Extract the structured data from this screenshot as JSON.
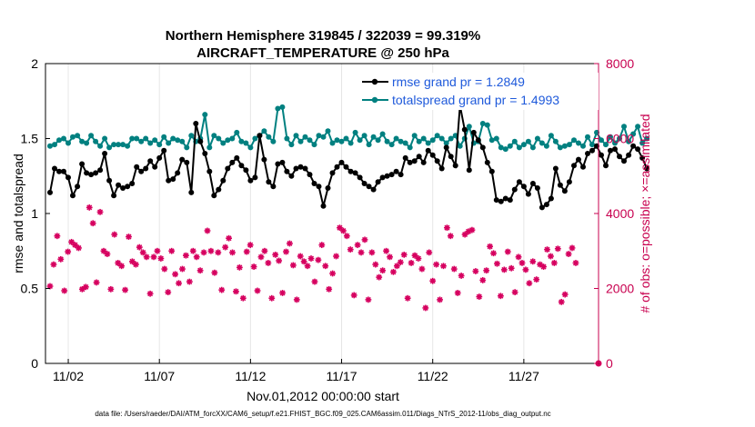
{
  "chart_data": {
    "type": "line",
    "title": "Northern Hemisphere 319845 / 322039 = 99.319%",
    "subtitle": "AIRCRAFT_TEMPERATURE @ 250 hPa",
    "xlabel": "Nov.01,2012 00:00:00 start",
    "ylabel_left": "rmse and totalspread",
    "ylabel_right": "# of obs: o=possible; ×=assimilated",
    "footer": "data file: /Users/raeder/DAI/ATM_forcXX/CAM6_setup/f.e21.FHIST_BGC.f09_025.CAM6assim.011/Diags_NTrS_2012-11/obs_diag_output.nc",
    "x_range": [
      0.75,
      31.1
    ],
    "x_ticks": [
      2,
      7,
      12,
      17,
      22,
      27
    ],
    "x_tick_labels": [
      "11/02",
      "11/07",
      "11/12",
      "11/17",
      "11/22",
      "11/27"
    ],
    "y_left_range": [
      0,
      2
    ],
    "y_left_ticks": [
      0,
      0.5,
      1,
      1.5,
      2
    ],
    "y_left_tick_labels": [
      "0",
      "0.5",
      "1",
      "1.5",
      "2"
    ],
    "y_right_range": [
      0,
      8000
    ],
    "y_right_ticks": [
      0,
      2000,
      4000,
      6000,
      8000
    ],
    "y_right_tick_labels": [
      "0",
      "2000",
      "4000",
      "6000",
      "8000"
    ],
    "legend": [
      "rmse grand pr = 1.2849",
      "totalspread grand pr = 1.4993"
    ],
    "colors": {
      "rmse": "#000000",
      "spread": "#008080",
      "obs": "#d6005f",
      "right_axis": "#c8004f",
      "legend_text": "#1f5adb"
    },
    "x_start": 1.0,
    "x_step": 0.25,
    "series": [
      {
        "name": "rmse",
        "values": [
          1.14,
          1.3,
          1.28,
          1.28,
          1.24,
          1.12,
          1.18,
          1.33,
          1.27,
          1.26,
          1.27,
          1.29,
          1.4,
          1.22,
          1.12,
          1.19,
          1.17,
          1.18,
          1.2,
          1.31,
          1.28,
          1.3,
          1.35,
          1.31,
          1.37,
          1.42,
          1.22,
          1.23,
          1.27,
          1.36,
          1.34,
          1.14,
          1.6,
          1.48,
          1.4,
          1.28,
          1.12,
          1.16,
          1.22,
          1.3,
          1.34,
          1.37,
          1.32,
          1.29,
          1.22,
          1.24,
          1.52,
          1.36,
          1.21,
          1.18,
          1.33,
          1.34,
          1.28,
          1.25,
          1.3,
          1.31,
          1.3,
          1.26,
          1.2,
          1.18,
          1.05,
          1.17,
          1.27,
          1.31,
          1.34,
          1.31,
          1.28,
          1.27,
          1.24,
          1.2,
          1.18,
          1.16,
          1.21,
          1.24,
          1.25,
          1.26,
          1.28,
          1.26,
          1.37,
          1.34,
          1.35,
          1.38,
          1.34,
          1.42,
          1.39,
          1.35,
          1.3,
          1.44,
          1.38,
          1.32,
          1.72,
          1.56,
          1.29,
          1.54,
          1.49,
          1.44,
          1.34,
          1.28,
          1.09,
          1.08,
          1.1,
          1.09,
          1.16,
          1.21,
          1.18,
          1.13,
          1.2,
          1.17,
          1.04,
          1.06,
          1.1,
          1.3,
          1.19,
          1.15,
          1.21,
          1.32,
          1.36,
          1.31,
          1.4,
          1.42,
          1.45,
          1.39,
          1.32,
          1.42,
          1.43,
          1.38,
          1.35,
          1.39,
          1.45,
          1.43,
          1.37,
          1.3
        ]
      },
      {
        "name": "totalspread",
        "values": [
          1.45,
          1.46,
          1.49,
          1.5,
          1.47,
          1.51,
          1.52,
          1.48,
          1.47,
          1.52,
          1.48,
          1.45,
          1.5,
          1.44,
          1.46,
          1.46,
          1.46,
          1.45,
          1.5,
          1.5,
          1.48,
          1.5,
          1.47,
          1.49,
          1.46,
          1.51,
          1.47,
          1.5,
          1.49,
          1.48,
          1.44,
          1.52,
          1.48,
          1.5,
          1.66,
          1.44,
          1.52,
          1.5,
          1.47,
          1.49,
          1.5,
          1.54,
          1.48,
          1.47,
          1.44,
          1.5,
          1.52,
          1.55,
          1.51,
          1.48,
          1.7,
          1.71,
          1.5,
          1.46,
          1.52,
          1.48,
          1.51,
          1.49,
          1.46,
          1.52,
          1.51,
          1.55,
          1.47,
          1.49,
          1.48,
          1.5,
          1.47,
          1.54,
          1.49,
          1.52,
          1.46,
          1.51,
          1.49,
          1.53,
          1.48,
          1.46,
          1.5,
          1.48,
          1.47,
          1.44,
          1.52,
          1.48,
          1.5,
          1.47,
          1.49,
          1.52,
          1.5,
          1.47,
          1.5,
          1.52,
          1.45,
          1.5,
          1.58,
          1.47,
          1.48,
          1.6,
          1.59,
          1.49,
          1.5,
          1.44,
          1.43,
          1.45,
          1.48,
          1.44,
          1.46,
          1.48,
          1.44,
          1.5,
          1.47,
          1.45,
          1.52,
          1.48,
          1.44,
          1.45,
          1.46,
          1.49,
          1.47,
          1.45,
          1.51,
          1.46,
          1.54,
          1.49,
          1.46,
          1.51,
          1.47,
          1.5,
          1.58,
          1.48,
          1.53,
          1.58,
          1.47,
          1.5
        ]
      },
      {
        "name": "obs_assimilated",
        "values": [
          2060,
          2640,
          3400,
          2780,
          1940,
          2980,
          3240,
          3160,
          3080,
          1980,
          2040,
          4160,
          3740,
          2160,
          4040,
          3000,
          2920,
          1980,
          3440,
          2680,
          2600,
          1960,
          3380,
          2720,
          2640,
          3100,
          2960,
          2840,
          1860,
          2840,
          3000,
          2800,
          2520,
          1900,
          3000,
          2380,
          2140,
          2520,
          2880,
          2180,
          3000,
          2840,
          2480,
          2960,
          3540,
          3000,
          2420,
          2960,
          1960,
          3100,
          3340,
          2960,
          1920,
          2560,
          1740,
          2980,
          3160,
          2580,
          1940,
          2840,
          3000,
          2680,
          1740,
          2900,
          2740,
          1880,
          2980,
          3200,
          2620,
          1700,
          2860,
          2720,
          2600,
          2800,
          2180,
          2760,
          3160,
          2600,
          1980,
          2400,
          2860,
          3620,
          3540,
          3400,
          3040,
          1820,
          3160,
          2960,
          3300,
          1700,
          2960,
          2640,
          2300,
          2480,
          3000,
          2840,
          2440,
          2600,
          2700,
          2900,
          1740,
          2680,
          2880,
          2800,
          2520,
          1480,
          2960,
          2200,
          2640,
          1700,
          2600,
          3620,
          3400,
          2520,
          1880,
          2340,
          3440,
          3520,
          3560,
          2460,
          1780,
          2220,
          2480,
          3120,
          2940,
          2660,
          1800,
          2500,
          2980,
          2540,
          1900,
          2840,
          2680,
          2500,
          2140,
          2720,
          2240,
          2640,
          2580,
          3040,
          2860,
          2680,
          3060,
          1640,
          1840,
          2920,
          3080,
          2680
        ]
      }
    ]
  }
}
